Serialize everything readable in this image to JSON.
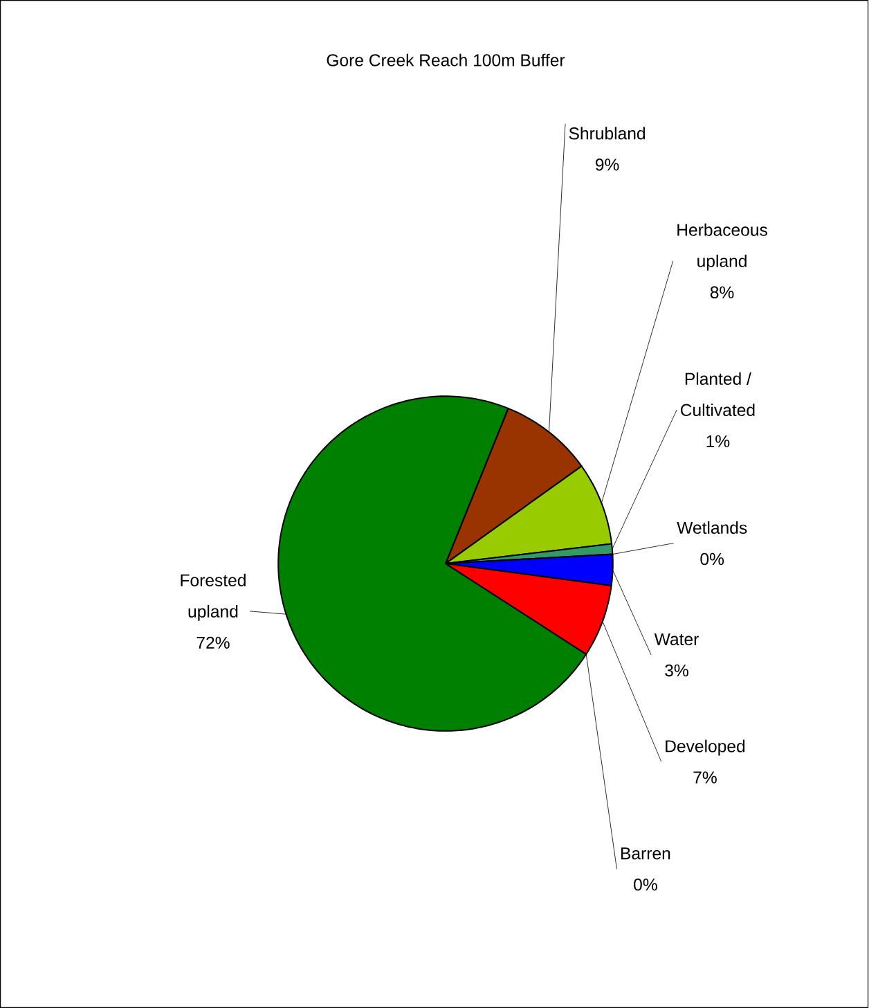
{
  "chart_data": {
    "type": "pie",
    "title": "Gore Creek Reach 100m Buffer",
    "categories": [
      "Shrubland",
      "Herbaceous upland",
      "Planted / Cultivated",
      "Wetlands",
      "Water",
      "Developed",
      "Barren",
      "Forested upland"
    ],
    "values": [
      9,
      8,
      1,
      0,
      3,
      7,
      0,
      72
    ],
    "value_labels": [
      "9%",
      "8%",
      "1%",
      "0%",
      "3%",
      "7%",
      "0%",
      "72%"
    ],
    "colors": [
      "#993300",
      "#99cc00",
      "#339966",
      "#808080",
      "#0000ff",
      "#ff0000",
      "#c0c0c0",
      "#008000"
    ]
  }
}
